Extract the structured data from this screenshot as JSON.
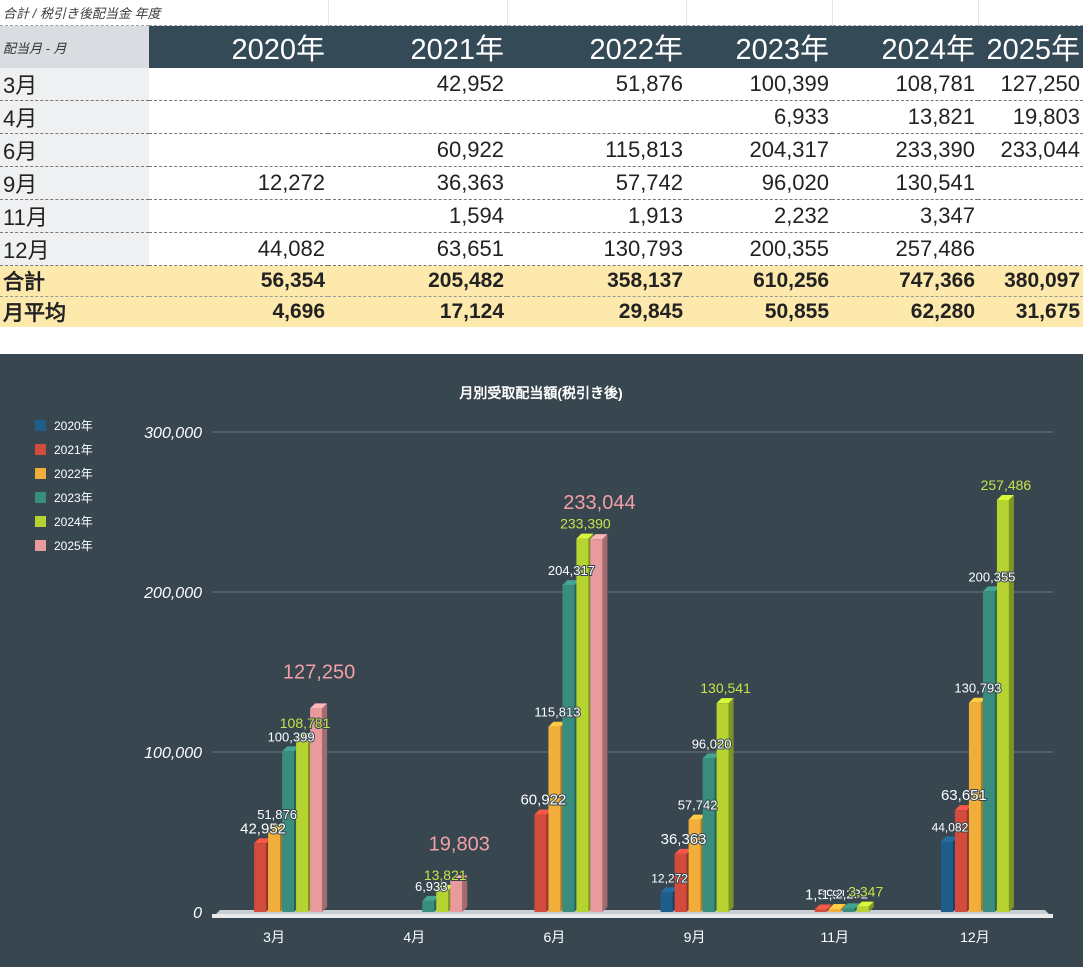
{
  "pivot": {
    "filter_label": "合計 / 税引き後配当金 年度",
    "row_header_label": "配当月 - 月",
    "columns": [
      "2020年",
      "2021年",
      "2022年",
      "2023年",
      "2024年",
      "2025年"
    ],
    "rows": [
      {
        "label": "3月",
        "values": [
          "",
          "42,952",
          "51,876",
          "100,399",
          "108,781",
          "127,250"
        ]
      },
      {
        "label": "4月",
        "values": [
          "",
          "",
          "",
          "6,933",
          "13,821",
          "19,803"
        ]
      },
      {
        "label": "6月",
        "values": [
          "",
          "60,922",
          "115,813",
          "204,317",
          "233,390",
          "233,044"
        ]
      },
      {
        "label": "9月",
        "values": [
          "12,272",
          "36,363",
          "57,742",
          "96,020",
          "130,541",
          ""
        ]
      },
      {
        "label": "11月",
        "values": [
          "",
          "1,594",
          "1,913",
          "2,232",
          "3,347",
          ""
        ]
      },
      {
        "label": "12月",
        "values": [
          "44,082",
          "63,651",
          "130,793",
          "200,355",
          "257,486",
          ""
        ]
      }
    ],
    "total": {
      "label": "合計",
      "values": [
        "56,354",
        "205,482",
        "358,137",
        "610,256",
        "747,366",
        "380,097"
      ]
    },
    "average": {
      "label": "月平均",
      "values": [
        "4,696",
        "17,124",
        "29,845",
        "50,855",
        "62,280",
        "31,675"
      ]
    }
  },
  "chart_data": {
    "type": "bar",
    "title": "月別受取配当額(税引き後)",
    "categories": [
      "3月",
      "4月",
      "6月",
      "9月",
      "11月",
      "12月"
    ],
    "series": [
      {
        "name": "2020年",
        "color": "#1f5d8a",
        "values": [
          null,
          null,
          null,
          12272,
          null,
          44082
        ]
      },
      {
        "name": "2021年",
        "color": "#d24b3c",
        "values": [
          42952,
          null,
          60922,
          36363,
          1594,
          63651
        ]
      },
      {
        "name": "2022年",
        "color": "#f2ae3a",
        "values": [
          51876,
          null,
          115813,
          57742,
          1913,
          130793
        ]
      },
      {
        "name": "2023年",
        "color": "#3a8c7c",
        "values": [
          100399,
          6933,
          204317,
          96020,
          2232,
          200355
        ]
      },
      {
        "name": "2024年",
        "color": "#b7d331",
        "values": [
          108781,
          13821,
          233390,
          130541,
          3347,
          257486
        ]
      },
      {
        "name": "2025年",
        "color": "#e89a9d",
        "values": [
          127250,
          19803,
          233044,
          null,
          null,
          null
        ]
      }
    ],
    "ylim": [
      0,
      300000
    ],
    "yticks": [
      "0",
      "100,000",
      "200,000",
      "300,000"
    ],
    "grid": true,
    "legend_position": "top-left"
  }
}
